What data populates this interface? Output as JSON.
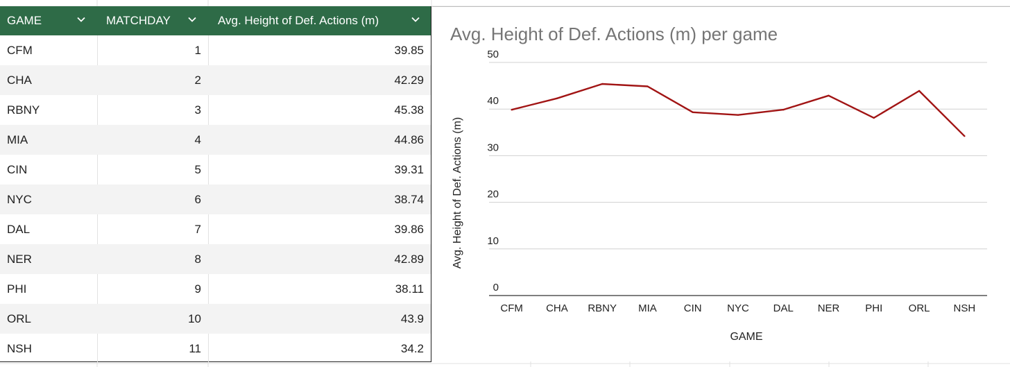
{
  "table": {
    "headers": [
      "GAME",
      "MATCHDAY",
      "Avg. Height of Def. Actions (m)"
    ],
    "rows": [
      [
        "CFM",
        "1",
        "39.85"
      ],
      [
        "CHA",
        "2",
        "42.29"
      ],
      [
        "RBNY",
        "3",
        "45.38"
      ],
      [
        "MIA",
        "4",
        "44.86"
      ],
      [
        "CIN",
        "5",
        "39.31"
      ],
      [
        "NYC",
        "6",
        "38.74"
      ],
      [
        "DAL",
        "7",
        "39.86"
      ],
      [
        "NER",
        "8",
        "42.89"
      ],
      [
        "PHI",
        "9",
        "38.11"
      ],
      [
        "ORL",
        "10",
        "43.9"
      ],
      [
        "NSH",
        "11",
        "34.2"
      ]
    ]
  },
  "colors": {
    "header_bg": "#2e6b47",
    "line": "#a11414",
    "title": "#757575",
    "stripe": "#f3f3f3"
  },
  "chart_data": {
    "type": "line",
    "title": "Avg. Height of Def. Actions (m) per game",
    "xlabel": "GAME",
    "ylabel": "Avg. Height of Def. Actions (m)",
    "categories": [
      "CFM",
      "CHA",
      "RBNY",
      "MIA",
      "CIN",
      "NYC",
      "DAL",
      "NER",
      "PHI",
      "ORL",
      "NSH"
    ],
    "values": [
      39.85,
      42.29,
      45.38,
      44.86,
      39.31,
      38.74,
      39.86,
      42.89,
      38.11,
      43.9,
      34.2
    ],
    "ylim": [
      0,
      50
    ],
    "yticks": [
      0,
      10,
      20,
      30,
      40,
      50
    ],
    "grid": true,
    "legend": "none"
  }
}
